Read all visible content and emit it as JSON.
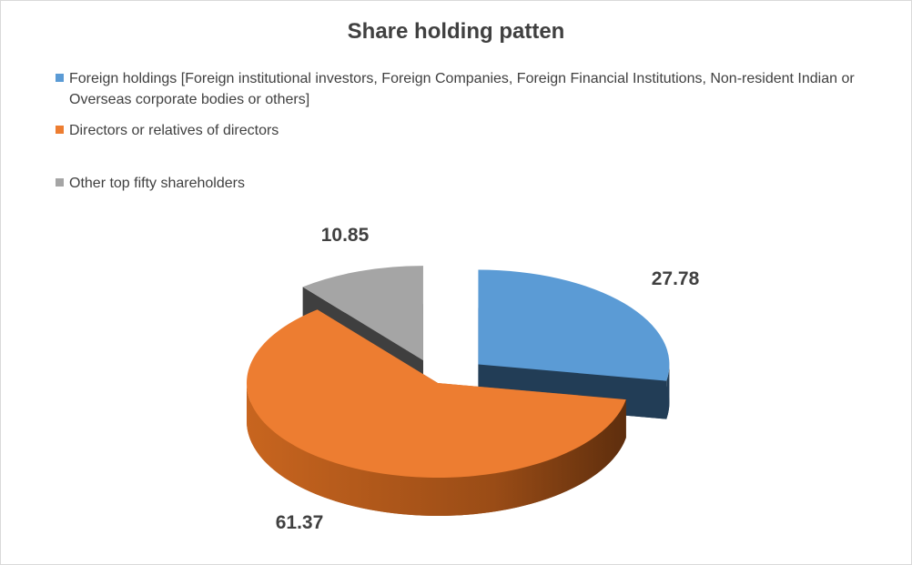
{
  "chart_data": {
    "type": "pie",
    "title": "Share holding patten",
    "legend_position": "top-left",
    "series": [
      {
        "name": "Foreign holdings [Foreign institutional investors, Foreign Companies, Foreign Financial Institutions, Non-resident Indian or Overseas corporate bodies or others]",
        "value": 27.78,
        "label": "27.78",
        "color": "#5b9bd5"
      },
      {
        "name": "Directors or relatives of directors",
        "value": 61.37,
        "label": "61.37",
        "color": "#ed7d31"
      },
      {
        "name": "Other top fifty shareholders",
        "value": 10.85,
        "label": "10.85",
        "color": "#a5a5a5"
      }
    ]
  }
}
